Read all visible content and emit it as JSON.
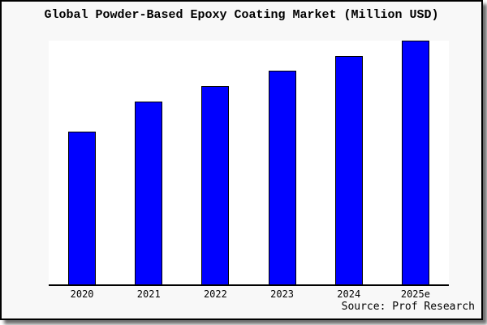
{
  "title": "Global Powder-Based Epoxy Coating Market (Million USD)",
  "source": "Source: Prof Research",
  "colors": {
    "figure_background": "#f8f8f8",
    "plot_background": "#ffffff",
    "bar_fill": "#0000ff",
    "bar_border": "#000000",
    "frame_border": "#000000"
  },
  "chart_data": {
    "type": "bar",
    "title": "Global Powder-Based Epoxy Coating Market (Million USD)",
    "categories": [
      "2020",
      "2021",
      "2022",
      "2023",
      "2024",
      "2025e"
    ],
    "values": [
      62.7,
      75.0,
      81.3,
      87.7,
      93.7,
      100.0
    ],
    "series_note": "y-axis has no ticks or labels; values are relative bar heights with 2025e = 100",
    "xlabel": "",
    "ylabel": "",
    "ylim": [
      0,
      100
    ],
    "grid": false,
    "legend": false,
    "bar_color": "#0000ff",
    "annotation": "Source: Prof Research"
  }
}
